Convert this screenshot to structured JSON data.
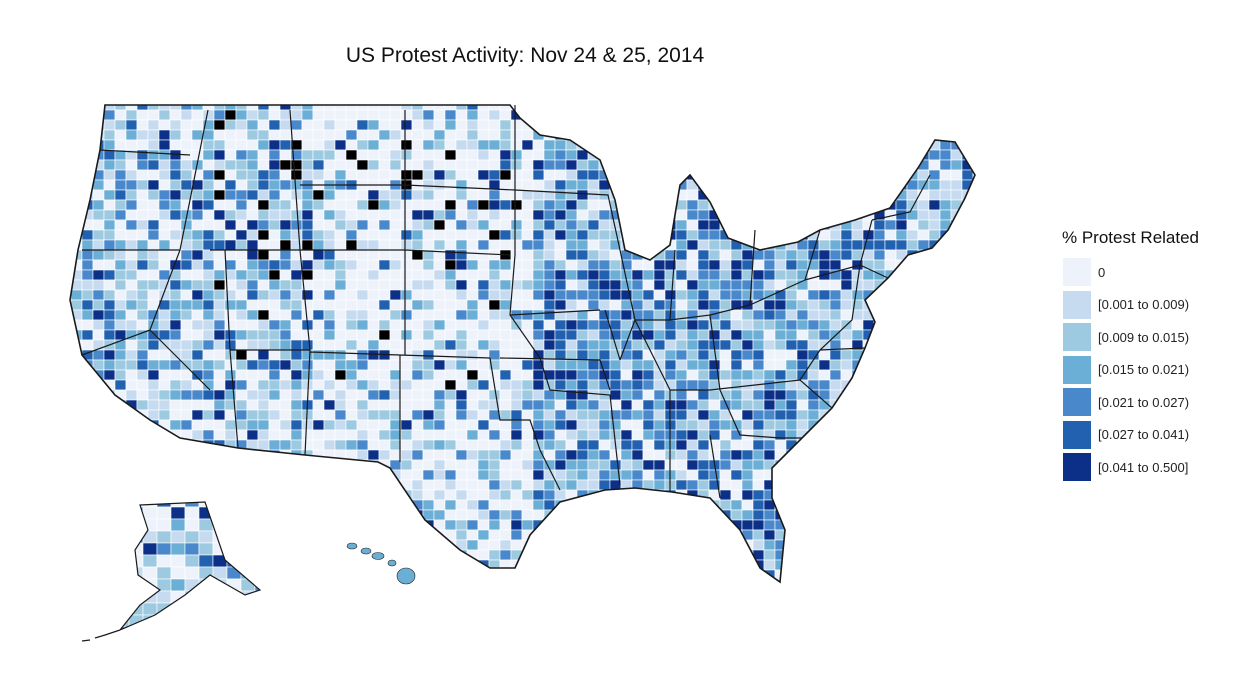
{
  "title": "US Protest Activity: Nov 24 & 25, 2014",
  "legend": {
    "title": "% Protest Related",
    "items": [
      {
        "label": "0",
        "color": "#eef2fb"
      },
      {
        "label": "[0.001 to 0.009)",
        "color": "#c6dbef"
      },
      {
        "label": "[0.009 to 0.015)",
        "color": "#9ecae1"
      },
      {
        "label": "[0.015 to 0.021)",
        "color": "#6baed6"
      },
      {
        "label": "[0.021 to 0.027)",
        "color": "#4a88cc"
      },
      {
        "label": "[0.027 to 0.041)",
        "color": "#2260b0"
      },
      {
        "label": "[0.041 to 0.500]",
        "color": "#0c2f88"
      }
    ],
    "no_data_color": "#000000"
  },
  "map": {
    "type": "choropleth",
    "region": "United States counties",
    "outline_color": "#000000",
    "county_border_color": "#ffffff"
  }
}
